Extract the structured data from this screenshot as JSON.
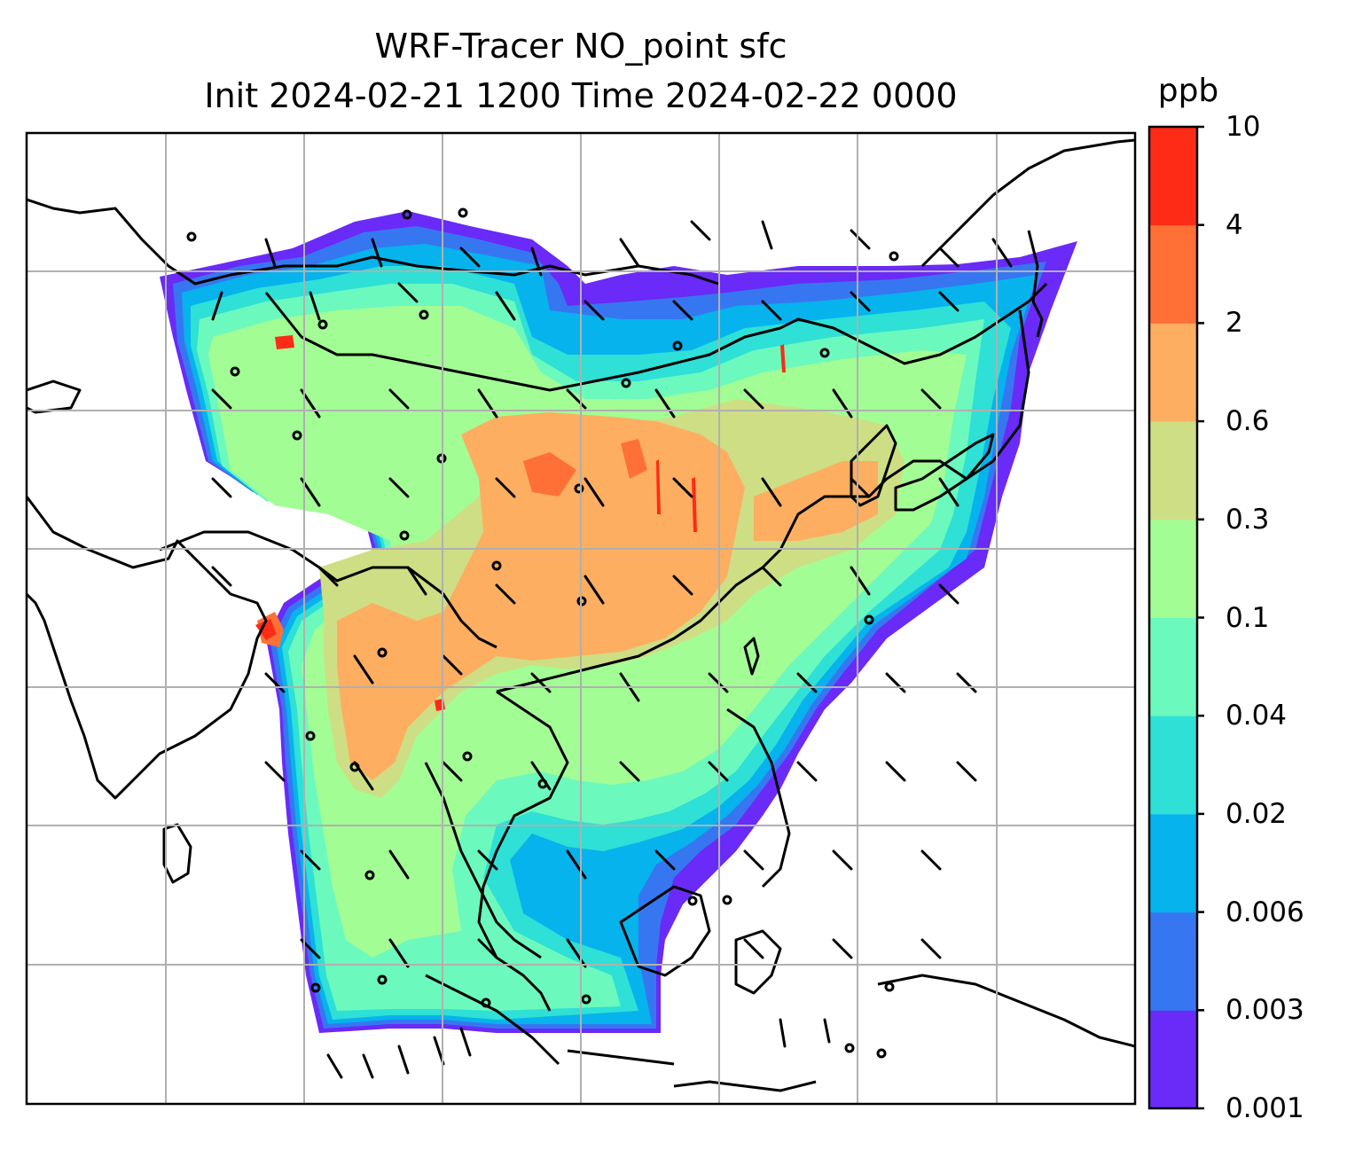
{
  "title": {
    "line1": "WRF-Tracer NO_point sfc",
    "line2": "Init 2024-02-21 1200 Time 2024-02-22 0000"
  },
  "colorbar": {
    "unit": "ppb",
    "levels": [
      "0.001",
      "0.003",
      "0.006",
      "0.02",
      "0.04",
      "0.1",
      "0.3",
      "0.6",
      "2",
      "4",
      "10"
    ],
    "colors": [
      "#6a2af8",
      "#3677f1",
      "#06b3ec",
      "#2ee0d6",
      "#6cf9bd",
      "#a3fd95",
      "#cede84",
      "#fdae61",
      "#ff7036",
      "#fe2b16"
    ]
  },
  "map": {
    "gridlines": true,
    "gridline_color": "#b0b0b0",
    "coastline_color": "#000000",
    "features": [
      "coastlines",
      "country borders",
      "wind barbs",
      "calm-wind circles",
      "tracer concentration shading"
    ]
  }
}
